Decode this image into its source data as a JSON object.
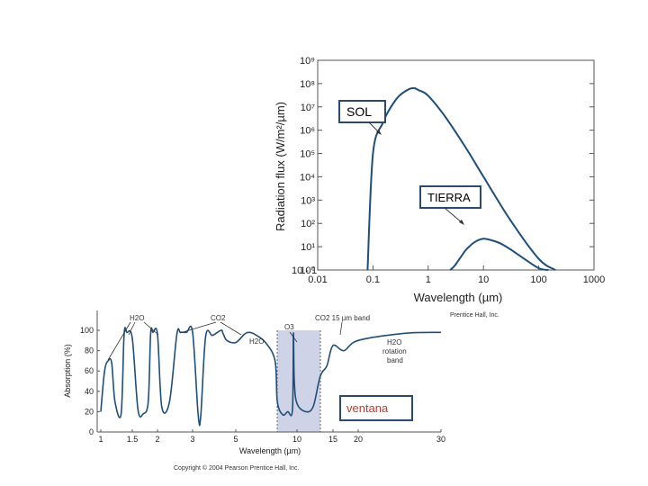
{
  "chart_data": [
    {
      "type": "line",
      "ylabel": "Radiation flux (W/m²/µm)",
      "xlabel": "Wavelength (µm)",
      "x_scale": "log",
      "y_scale": "log",
      "xlim": [
        0.01,
        1000
      ],
      "ylim": [
        1,
        1000000000
      ],
      "xticks": [
        "0.01",
        "0.1",
        "1",
        "10",
        "100",
        "1000"
      ],
      "yticks": [
        "10⁹",
        "10⁸",
        "10⁷",
        "10⁶",
        "10⁵",
        "10⁴",
        "10³",
        "10²",
        "10¹",
        "10⁰",
        "10 - 1"
      ],
      "series": [
        {
          "name": "SOL",
          "x": [
            0.08,
            0.1,
            0.15,
            0.2,
            0.3,
            0.5,
            0.7,
            1,
            2,
            5,
            10,
            30,
            100,
            200
          ],
          "y": [
            1,
            100000,
            2000000,
            8000000,
            30000000,
            63000000,
            50000000,
            30000000,
            4000000,
            150000,
            10000,
            150,
            3,
            1
          ]
        },
        {
          "name": "TIERRA",
          "x": [
            2.5,
            3,
            4,
            5,
            7,
            10,
            15,
            20,
            30,
            50,
            100,
            150
          ],
          "y": [
            1,
            1.5,
            4,
            8,
            16,
            22,
            18,
            14,
            8,
            3.5,
            1.2,
            1
          ]
        }
      ],
      "credit": "Prentice Hall, Inc."
    },
    {
      "type": "line",
      "ylabel": "Absorption (%)",
      "xlabel": "Wavelength (µm)",
      "ylim": [
        0,
        100
      ],
      "xticks": [
        "1",
        "1.5",
        "2",
        "3",
        "5",
        "10",
        "15",
        "20",
        "30"
      ],
      "yticks": [
        "100",
        "80",
        "60",
        "40",
        "20",
        "0"
      ],
      "series": [
        {
          "name": "Absorption",
          "x": [
            1,
            1.05,
            1.1,
            1.15,
            1.2,
            1.3,
            1.35,
            1.4,
            1.5,
            1.6,
            1.7,
            1.8,
            1.85,
            1.9,
            2.0,
            2.1,
            2.3,
            2.5,
            2.6,
            2.7,
            2.8,
            3.0,
            3.2,
            3.3,
            3.5,
            3.8,
            4.2,
            4.3,
            4.5,
            5,
            5.5,
            5.8,
            6.2,
            7,
            7.8,
            8,
            8.5,
            9,
            9.5,
            9.6,
            9.7,
            10,
            11,
            12,
            13,
            14,
            15,
            17,
            20,
            25,
            30
          ],
          "y": [
            20,
            60,
            70,
            68,
            30,
            18,
            96,
            98,
            92,
            22,
            18,
            30,
            97,
            98,
            96,
            25,
            30,
            96,
            98,
            98,
            98,
            98,
            18,
            15,
            94,
            95,
            100,
            97,
            90,
            88,
            96,
            98,
            96,
            88,
            70,
            30,
            17,
            20,
            22,
            97,
            50,
            28,
            20,
            25,
            55,
            65,
            85,
            80,
            90,
            97,
            98
          ]
        }
      ],
      "window": {
        "from": 8,
        "to": 13
      },
      "annotations": [
        "H2O",
        "CO2",
        "O3",
        "H2O",
        "CO2 15 µm band",
        "H2O rotation band"
      ],
      "annotation_words": [
        "H2O",
        "rotation",
        "band"
      ],
      "credit": "Copyright © 2004 Pearson Prentice Hall, Inc."
    }
  ],
  "labels": {
    "sol": "SOL",
    "tierra": "TIERRA",
    "ventana": "ventana"
  },
  "colors": {
    "curve": "#1f4e79",
    "box_border": "#2a4a72",
    "window_fill": "#c5cbe3",
    "ventana_text": "#c0392b"
  }
}
